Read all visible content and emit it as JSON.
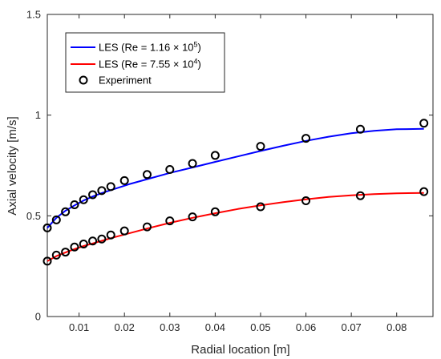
{
  "chart_data": {
    "type": "line",
    "xlabel": "Radial location [m]",
    "ylabel": "Axial velocity [m/s]",
    "xlim": [
      0.003,
      0.088
    ],
    "ylim": [
      0,
      1.5
    ],
    "x_ticks": [
      "0.01",
      "0.02",
      "0.03",
      "0.04",
      "0.05",
      "0.06",
      "0.07",
      "0.08"
    ],
    "x_tick_values": [
      0.01,
      0.02,
      0.03,
      0.04,
      0.05,
      0.06,
      0.07,
      0.08
    ],
    "y_ticks": [
      "0",
      "0.5",
      "1",
      "1.5"
    ],
    "y_tick_values": [
      0,
      0.5,
      1,
      1.5
    ],
    "grid": false,
    "legend_position": "top-left",
    "legend": [
      {
        "label_main": "LES (Re = 1.16 × 10",
        "label_exp": "5",
        "label_end": ")",
        "kind": "line",
        "color": "#0000ff"
      },
      {
        "label_main": "LES (Re = 7.55 × 10",
        "label_exp": "4",
        "label_end": ")",
        "kind": "line",
        "color": "#ff0000"
      },
      {
        "label_main": "Experiment",
        "label_exp": "",
        "label_end": "",
        "kind": "marker",
        "color": "#000000"
      }
    ],
    "series": [
      {
        "name": "LES (Re = 1.16 × 10^5)",
        "color": "#0000ff",
        "kind": "line",
        "x": [
          0.003,
          0.005,
          0.007,
          0.009,
          0.011,
          0.013,
          0.015,
          0.018,
          0.021,
          0.025,
          0.03,
          0.035,
          0.04,
          0.045,
          0.05,
          0.055,
          0.06,
          0.065,
          0.07,
          0.075,
          0.08,
          0.086
        ],
        "y": [
          0.44,
          0.49,
          0.525,
          0.552,
          0.576,
          0.596,
          0.613,
          0.635,
          0.657,
          0.682,
          0.713,
          0.74,
          0.768,
          0.795,
          0.822,
          0.848,
          0.872,
          0.893,
          0.91,
          0.922,
          0.93,
          0.932
        ]
      },
      {
        "name": "LES (Re = 7.55 × 10^4)",
        "color": "#ff0000",
        "kind": "line",
        "x": [
          0.003,
          0.005,
          0.007,
          0.009,
          0.011,
          0.013,
          0.015,
          0.018,
          0.021,
          0.025,
          0.03,
          0.035,
          0.04,
          0.045,
          0.05,
          0.055,
          0.06,
          0.065,
          0.07,
          0.075,
          0.08,
          0.086
        ],
        "y": [
          0.275,
          0.3,
          0.318,
          0.335,
          0.35,
          0.363,
          0.376,
          0.395,
          0.413,
          0.437,
          0.465,
          0.49,
          0.513,
          0.534,
          0.552,
          0.568,
          0.582,
          0.594,
          0.602,
          0.608,
          0.612,
          0.614
        ]
      },
      {
        "name": "Experiment",
        "color": "#000000",
        "kind": "marker",
        "x": [
          0.003,
          0.005,
          0.007,
          0.009,
          0.011,
          0.013,
          0.015,
          0.017,
          0.02,
          0.025,
          0.03,
          0.035,
          0.04,
          0.05,
          0.06,
          0.072,
          0.086
        ],
        "y": [
          0.44,
          0.48,
          0.52,
          0.555,
          0.58,
          0.605,
          0.625,
          0.645,
          0.675,
          0.705,
          0.73,
          0.76,
          0.8,
          0.845,
          0.885,
          0.93,
          0.96
        ]
      },
      {
        "name": "Experiment",
        "color": "#000000",
        "kind": "marker",
        "x": [
          0.003,
          0.005,
          0.007,
          0.009,
          0.011,
          0.013,
          0.015,
          0.017,
          0.02,
          0.025,
          0.03,
          0.035,
          0.04,
          0.05,
          0.06,
          0.072,
          0.086
        ],
        "y": [
          0.275,
          0.305,
          0.32,
          0.345,
          0.36,
          0.375,
          0.385,
          0.405,
          0.425,
          0.445,
          0.475,
          0.495,
          0.52,
          0.545,
          0.575,
          0.6,
          0.62
        ]
      }
    ]
  }
}
